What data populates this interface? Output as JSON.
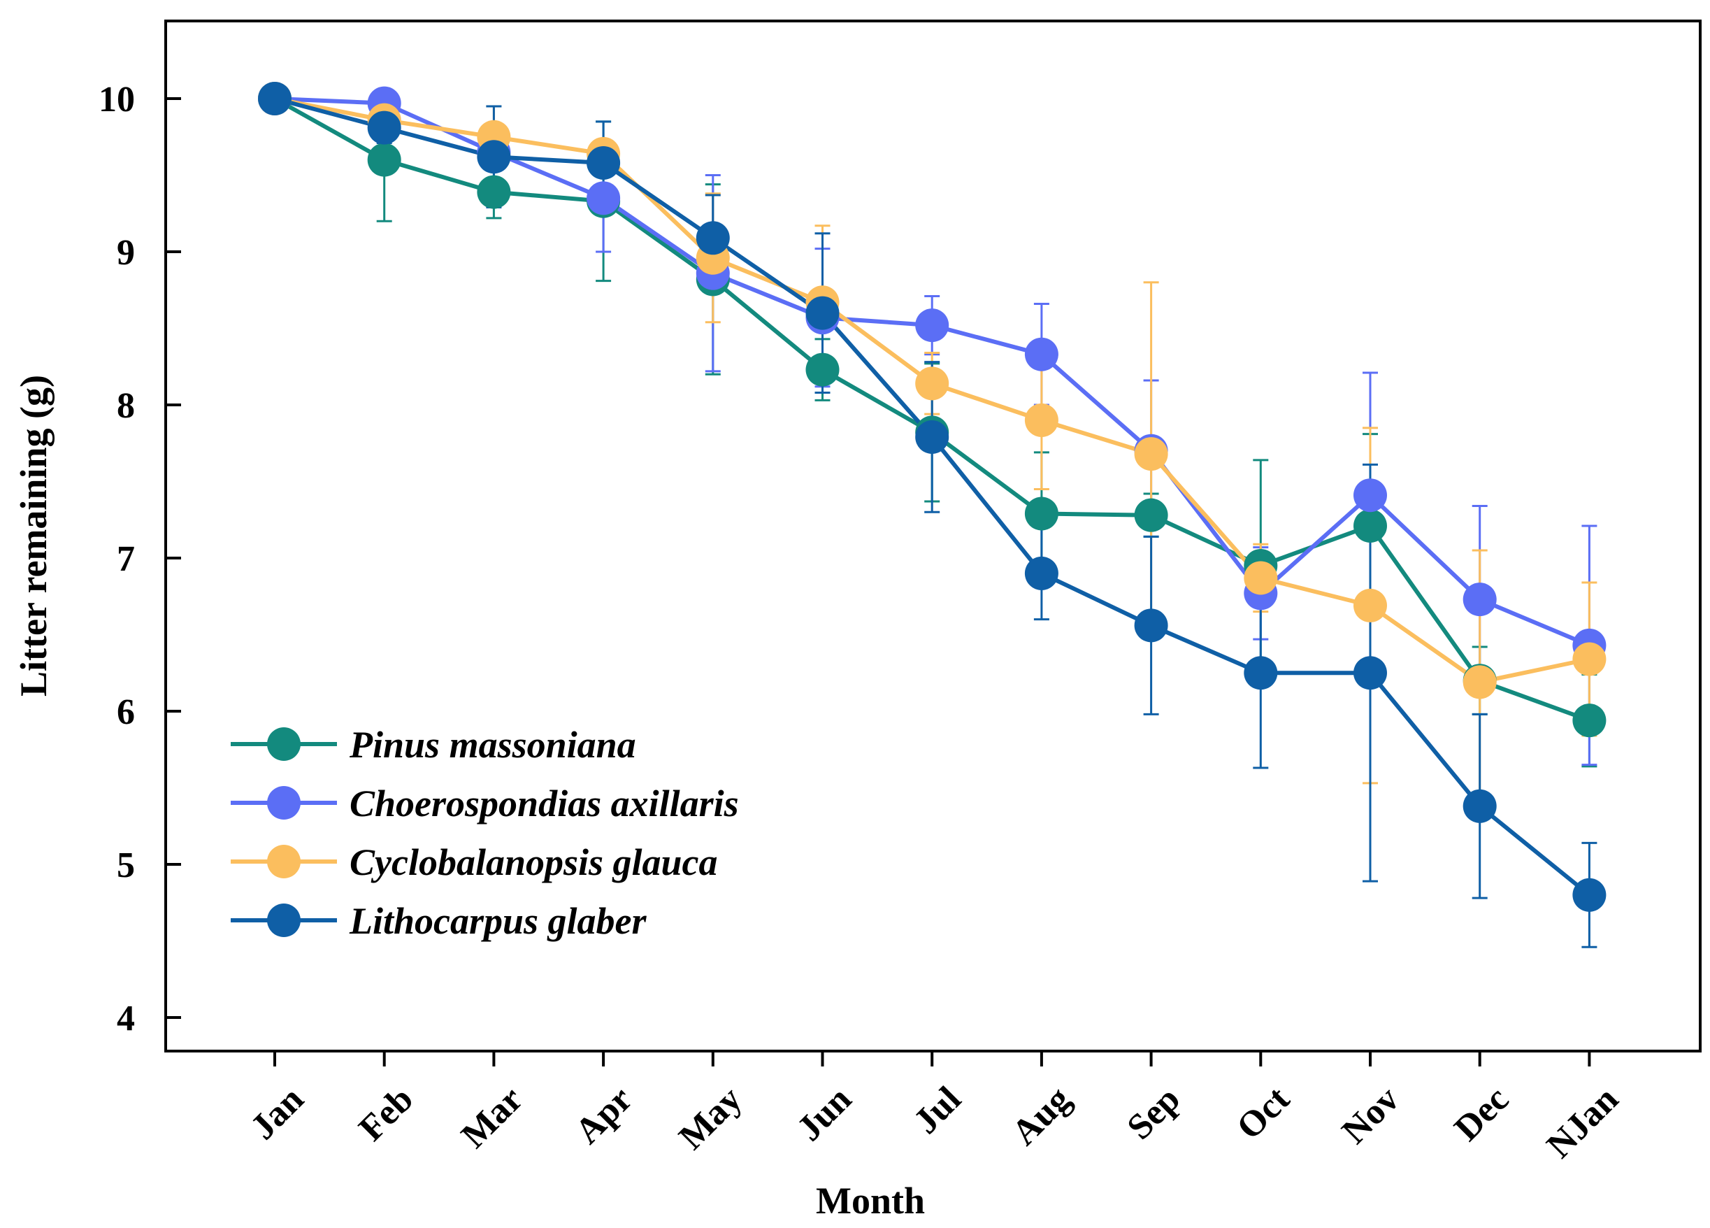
{
  "chart_data": {
    "type": "line",
    "title": "",
    "xlabel": "Month",
    "ylabel": "Litter remaining (g)",
    "ylim": [
      4,
      10.5
    ],
    "yticks": [
      4,
      5,
      6,
      7,
      8,
      9,
      10
    ],
    "categories": [
      "Jan",
      "Feb",
      "Mar",
      "Apr",
      "May",
      "Jun",
      "Jul",
      "Aug",
      "Sep",
      "Oct",
      "Nov",
      "Dec",
      "NJan"
    ],
    "legend_position": "bottom-left",
    "grid": false,
    "series": [
      {
        "name": "Pinus massoniana",
        "color": "#138a7e",
        "values": [
          10.0,
          9.6,
          9.39,
          9.33,
          8.82,
          8.23,
          7.82,
          7.29,
          7.28,
          6.95,
          7.21,
          6.2,
          5.94
        ],
        "errors": [
          0.0,
          0.4,
          0.17,
          0.52,
          0.62,
          0.2,
          0.45,
          0.4,
          0.14,
          0.69,
          0.6,
          0.22,
          0.3
        ]
      },
      {
        "name": "Choerospondias axillaris",
        "color": "#5b6ef5",
        "values": [
          10.0,
          9.97,
          9.65,
          9.35,
          8.86,
          8.57,
          8.52,
          8.33,
          7.7,
          6.77,
          7.41,
          6.73,
          6.43
        ],
        "errors": [
          0.0,
          0.05,
          0.12,
          0.35,
          0.64,
          0.45,
          0.19,
          0.33,
          0.46,
          0.3,
          0.8,
          0.61,
          0.78
        ]
      },
      {
        "name": "Cyclobalanopsis glauca",
        "color": "#fbbe5e",
        "values": [
          10.0,
          9.86,
          9.75,
          9.64,
          8.96,
          8.67,
          8.14,
          7.9,
          7.68,
          6.87,
          6.69,
          6.19,
          6.34
        ],
        "errors": [
          0.0,
          0.1,
          0.2,
          0.08,
          0.42,
          0.5,
          0.2,
          0.45,
          1.12,
          0.22,
          1.16,
          0.86,
          0.5
        ]
      },
      {
        "name": "Lithocarpus glaber",
        "color": "#0f5fa6",
        "values": [
          10.0,
          9.81,
          9.62,
          9.58,
          9.09,
          8.6,
          7.79,
          6.9,
          6.56,
          6.25,
          6.25,
          5.38,
          4.8
        ],
        "errors": [
          0.0,
          0.1,
          0.33,
          0.27,
          0.28,
          0.52,
          0.49,
          0.3,
          0.58,
          0.62,
          1.36,
          0.6,
          0.34
        ]
      }
    ]
  }
}
